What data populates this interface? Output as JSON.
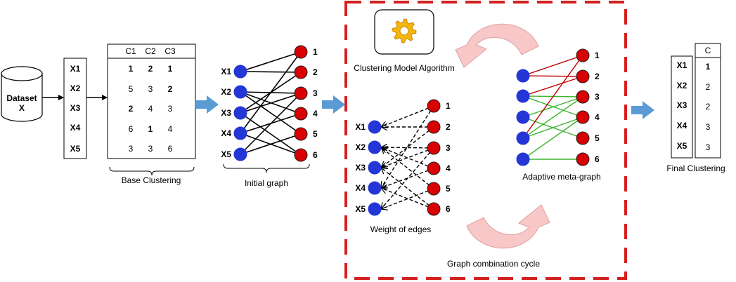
{
  "dataset": {
    "line1": "Dataset",
    "line2": "X"
  },
  "samples": [
    "X1",
    "X2",
    "X3",
    "X4",
    "X5"
  ],
  "base_clustering": {
    "headers": [
      "C1",
      "C2",
      "C3"
    ],
    "rows": [
      [
        "1",
        "2",
        "1"
      ],
      [
        "5",
        "3",
        "2"
      ],
      [
        "2",
        "4",
        "3"
      ],
      [
        "6",
        "1",
        "4"
      ],
      [
        "3",
        "3",
        "6"
      ]
    ],
    "caption": "Base Clustering"
  },
  "initial_graph": {
    "caption": "Initial graph",
    "clusters": [
      "1",
      "2",
      "3",
      "4",
      "5",
      "6"
    ]
  },
  "weight_graph": {
    "caption": "Weight of edges",
    "clusters": [
      "1",
      "2",
      "3",
      "4",
      "5",
      "6"
    ]
  },
  "meta_graph": {
    "caption": "Adaptive meta-graph",
    "clusters": [
      "1",
      "2",
      "3",
      "4",
      "5",
      "6"
    ]
  },
  "algorithm": {
    "caption": "Clustering Model Algorithm",
    "icon": "gear-icon"
  },
  "cycle": {
    "caption": "Graph combination cycle"
  },
  "final": {
    "header": "C",
    "values": [
      "1",
      "2",
      "2",
      "3",
      "3"
    ],
    "caption": "Final Clustering"
  },
  "colors": {
    "blue_node": "#2437d6",
    "red_node": "#d80000",
    "arrow_blue": "#5b9bd5",
    "dash_red": "#d42020",
    "meta_red": "#c00000",
    "meta_green": "#3db52e",
    "cycle_pink": "#f8c8c8"
  }
}
